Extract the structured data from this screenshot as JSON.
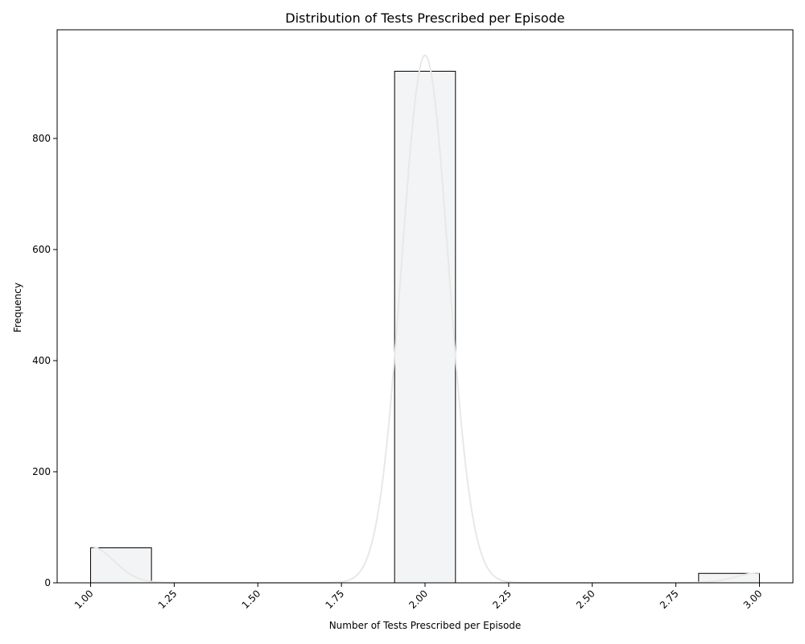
{
  "chart_data": {
    "type": "bar",
    "title": "Distribution of Tests Prescribed per Episode",
    "xlabel": "Number of Tests Prescribed per Episode",
    "ylabel": "Frequency",
    "xlim": [
      0.9,
      3.1
    ],
    "ylim": [
      0,
      1000
    ],
    "xticks": [
      "1.00",
      "1.25",
      "1.50",
      "1.75",
      "2.00",
      "2.25",
      "2.50",
      "2.75",
      "3.00"
    ],
    "yticks": [
      "0",
      "200",
      "400",
      "600",
      "800"
    ],
    "bins": [
      {
        "x0": 1.0,
        "x1": 1.182,
        "value": 63
      },
      {
        "x0": 1.909,
        "x1": 2.091,
        "value": 921
      },
      {
        "x0": 2.818,
        "x1": 3.0,
        "value": 17
      }
    ],
    "kde": {
      "peaks": [
        {
          "mu": 1.0,
          "height": 65,
          "sigma": 0.07
        },
        {
          "mu": 2.0,
          "height": 950,
          "sigma": 0.07
        },
        {
          "mu": 3.0,
          "height": 18,
          "sigma": 0.07
        }
      ]
    },
    "colors": {
      "bar_fill": "#f3f4f5",
      "bar_edge": "#000000",
      "kde_line": "#e8e8e8"
    },
    "grid": false,
    "legend": "none"
  }
}
